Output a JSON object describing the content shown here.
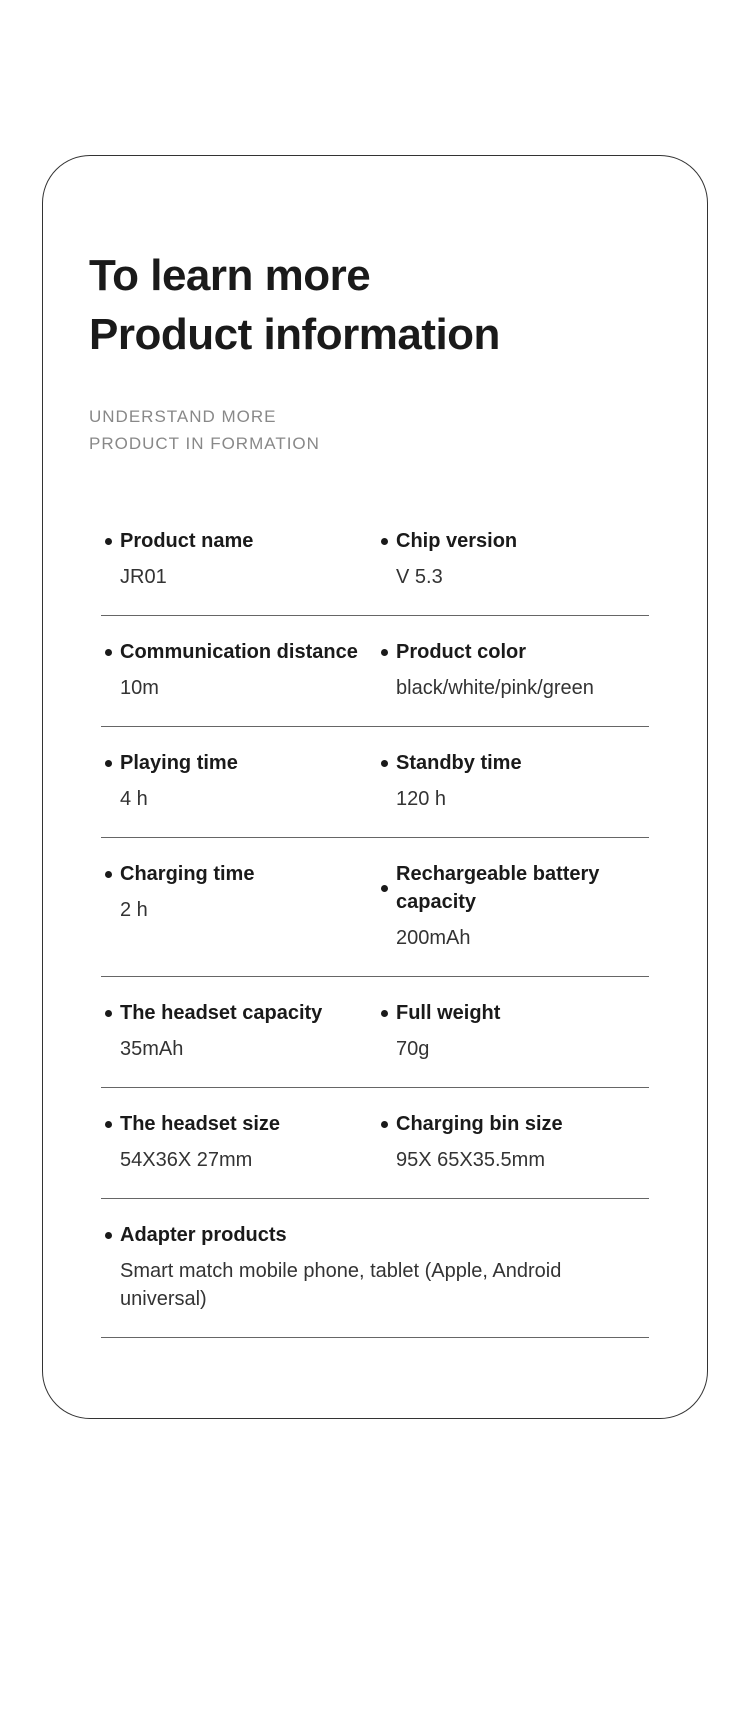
{
  "header": {
    "title_line1": "To learn more",
    "title_line2": "Product information",
    "subtitle_line1": "UNDERSTAND MORE",
    "subtitle_line2": "PRODUCT IN FORMATION"
  },
  "specs": {
    "rows": [
      {
        "left": {
          "label": "Product name",
          "value": "JR01"
        },
        "right": {
          "label": "Chip version",
          "value": "V 5.3"
        }
      },
      {
        "left": {
          "label": "Communication distance",
          "value": "10m"
        },
        "right": {
          "label": "Product color",
          "value": "black/white/pink/green"
        }
      },
      {
        "left": {
          "label": "Playing time",
          "value": "4 h"
        },
        "right": {
          "label": "Standby time",
          "value": "120 h"
        }
      },
      {
        "left": {
          "label": "Charging time",
          "value": "2 h"
        },
        "right": {
          "label": "Rechargeable battery capacity",
          "value": "200mAh"
        }
      },
      {
        "left": {
          "label": "The headset capacity",
          "value": "35mAh"
        },
        "right": {
          "label": "Full weight",
          "value": "70g"
        }
      },
      {
        "left": {
          "label": "The headset size",
          "value": "54X36X 27mm"
        },
        "right": {
          "label": "Charging bin size",
          "value": "95X 65X35.5mm"
        }
      }
    ],
    "full_row": {
      "label": "Adapter products",
      "value": "Smart match mobile phone, tablet (Apple, Android universal)"
    }
  },
  "styling": {
    "card_border_color": "#333333",
    "card_border_radius": 48,
    "title_color": "#1a1a1a",
    "title_fontsize": 44,
    "subtitle_color": "#888888",
    "subtitle_fontsize": 17,
    "label_fontsize": 20,
    "value_fontsize": 20,
    "bullet_color": "#1a1a1a",
    "divider_color": "#666666",
    "background_color": "#ffffff"
  }
}
